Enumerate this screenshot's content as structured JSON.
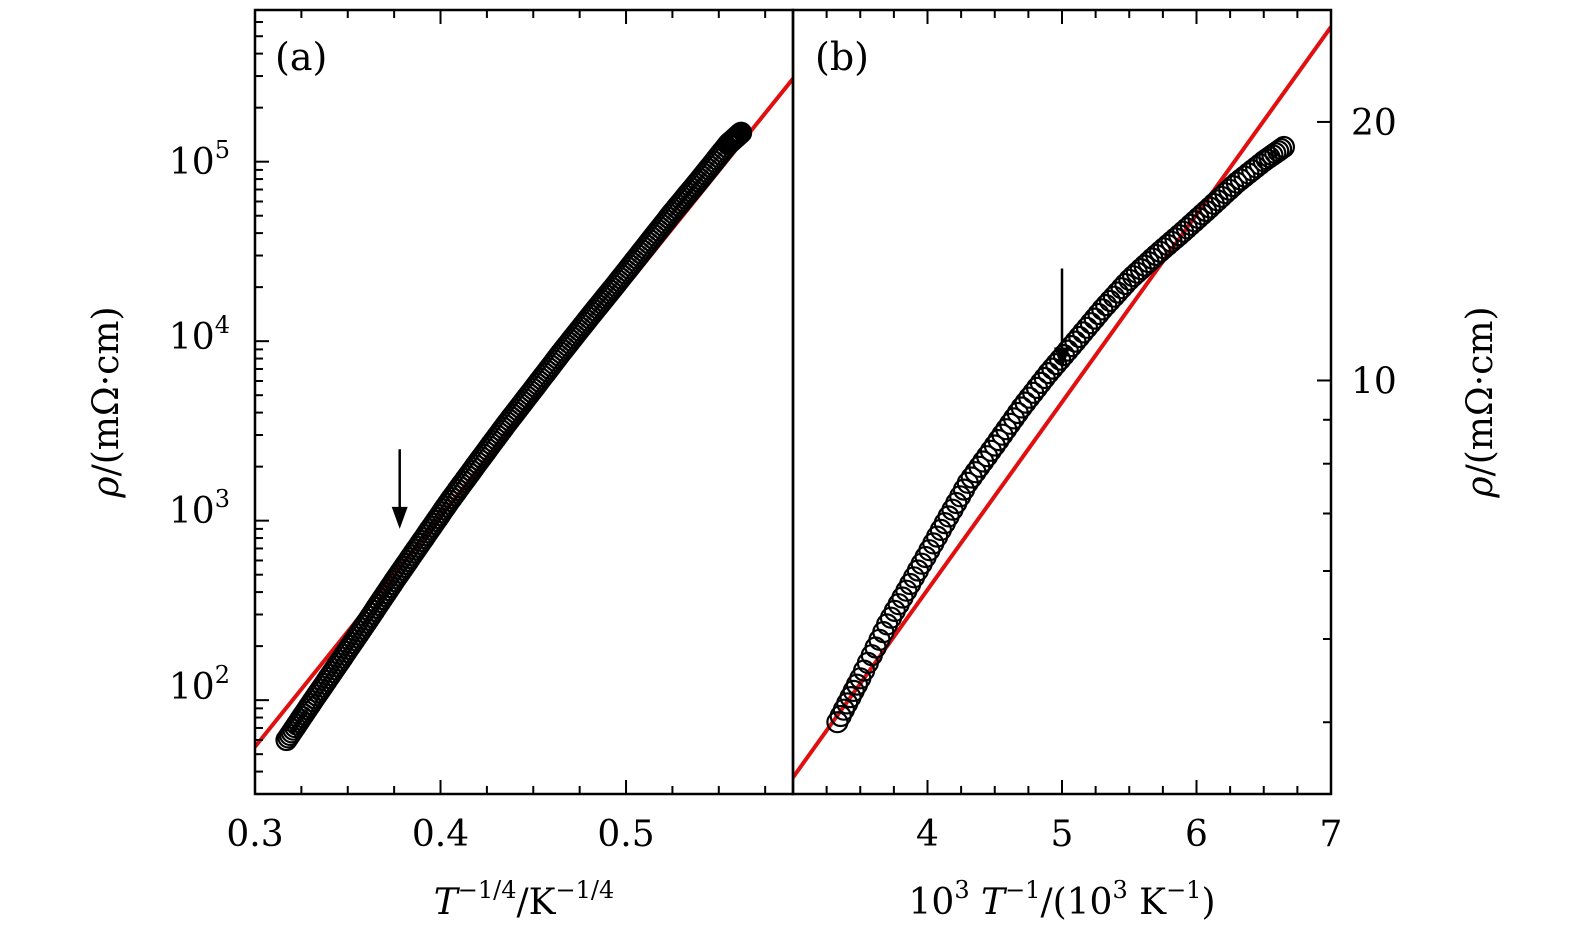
{
  "figure": {
    "colors": {
      "data_marker": "#000000",
      "fit_line": "#e01010",
      "axes": "#000000",
      "background": "#ffffff"
    }
  },
  "chart_data": [
    {
      "type": "scatter",
      "panel_label": "(a)",
      "xlabel": {
        "main": "T",
        "main_sup": "−1/4",
        "sep": "/K",
        "unit_sup": "−1/4"
      },
      "ylabel": {
        "symbol": "ρ",
        "unit": "/(mΩ·cm)"
      },
      "xlim": [
        0.3,
        0.59
      ],
      "x_ticks": [
        0.3,
        0.4,
        0.5
      ],
      "x_tick_labels": [
        "0.3",
        "0.4",
        "0.5"
      ],
      "y_scale": "log",
      "ylim": [
        30,
        700000
      ],
      "y_ticks": [
        100,
        1000,
        10000,
        100000
      ],
      "y_tick_labels": [
        {
          "base": "10",
          "exp": "2"
        },
        {
          "base": "10",
          "exp": "3"
        },
        {
          "base": "10",
          "exp": "4"
        },
        {
          "base": "10",
          "exp": "5"
        }
      ],
      "series": [
        {
          "marker": "open-circle",
          "x": [
            0.317,
            0.33,
            0.345,
            0.36,
            0.375,
            0.39,
            0.405,
            0.42,
            0.435,
            0.45,
            0.465,
            0.48,
            0.495,
            0.51,
            0.525,
            0.54,
            0.555,
            0.562
          ],
          "y": [
            60,
            95,
            160,
            270,
            460,
            770,
            1290,
            2100,
            3400,
            5400,
            8600,
            13500,
            21000,
            33000,
            52000,
            80000,
            125000,
            145000
          ]
        },
        {
          "line": "linear-fit",
          "x": [
            0.3,
            0.59
          ],
          "y": [
            55,
            290000
          ]
        }
      ],
      "annotation": {
        "type": "arrow-down",
        "x": 0.378,
        "y_from": 2500,
        "y_to": 900
      }
    },
    {
      "type": "scatter",
      "panel_label": "(b)",
      "xlabel": {
        "prefix": "10",
        "prefix_sup": "3",
        "main": "T",
        "main_sup": "−1",
        "unit_open": "/(10",
        "unit_sup1": "3",
        "unit_mid": " K",
        "unit_sup2": "−1",
        "unit_close": ")"
      },
      "ylabel": {
        "symbol": "ρ",
        "unit": "/(mΩ·cm)"
      },
      "xlim": [
        3.0,
        7.0
      ],
      "x_ticks": [
        4,
        5,
        6,
        7
      ],
      "x_tick_labels": [
        "4",
        "5",
        "6",
        "7"
      ],
      "y_scale": "log",
      "ylim": [
        3.3,
        27
      ],
      "y_ticks": [
        10,
        20
      ],
      "y_tick_labels": [
        "10",
        "20"
      ],
      "series": [
        {
          "marker": "open-circle",
          "x": [
            3.33,
            3.5,
            3.7,
            3.9,
            4.1,
            4.3,
            4.5,
            4.7,
            4.9,
            5.1,
            5.3,
            5.5,
            5.7,
            5.9,
            6.1,
            6.3,
            6.5,
            6.65
          ],
          "y": [
            4.0,
            4.5,
            5.2,
            5.9,
            6.7,
            7.6,
            8.4,
            9.3,
            10.2,
            11.1,
            12.1,
            13.1,
            14.0,
            14.9,
            15.9,
            17.0,
            18.0,
            18.7
          ]
        },
        {
          "line": "linear-fit",
          "x": [
            3.0,
            7.0
          ],
          "y": [
            3.45,
            25.8
          ]
        }
      ],
      "annotation": {
        "type": "arrow-down",
        "x": 5.0,
        "y_from": 13.5,
        "y_to": 10.3
      }
    }
  ]
}
